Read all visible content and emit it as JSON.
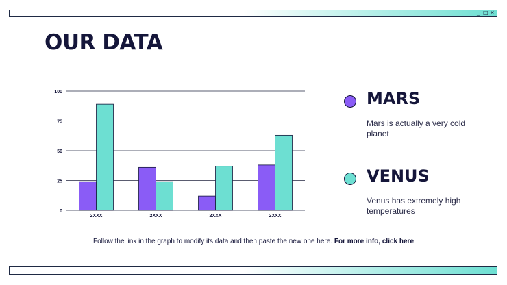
{
  "window": {
    "controls": [
      "_",
      "□",
      "✕"
    ]
  },
  "page": {
    "title": "OUR DATA"
  },
  "colors": {
    "mars": "#8a5cf6",
    "venus": "#6ddfd2",
    "ink": "#15163a"
  },
  "legend": [
    {
      "name": "MARS",
      "description": "Mars is actually a very cold planet",
      "color": "#8a5cf6"
    },
    {
      "name": "VENUS",
      "description": "Venus has extremely high temperatures",
      "color": "#6ddfd2"
    }
  ],
  "footer": {
    "text": "Follow the link in the graph to modify its data and then paste the new one here. ",
    "link": "For more info, click here"
  },
  "chart_data": {
    "type": "bar",
    "categories": [
      "2XXX",
      "2XXX",
      "2XXX",
      "2XXX"
    ],
    "series": [
      {
        "name": "MARS",
        "values": [
          24,
          36,
          12,
          38
        ],
        "color": "#8a5cf6"
      },
      {
        "name": "VENUS",
        "values": [
          89,
          24,
          37,
          63
        ],
        "color": "#6ddfd2"
      }
    ],
    "yticks": [
      0,
      25,
      50,
      75,
      100
    ],
    "ylim": [
      0,
      100
    ],
    "grid": true,
    "title": "",
    "xlabel": "",
    "ylabel": ""
  }
}
